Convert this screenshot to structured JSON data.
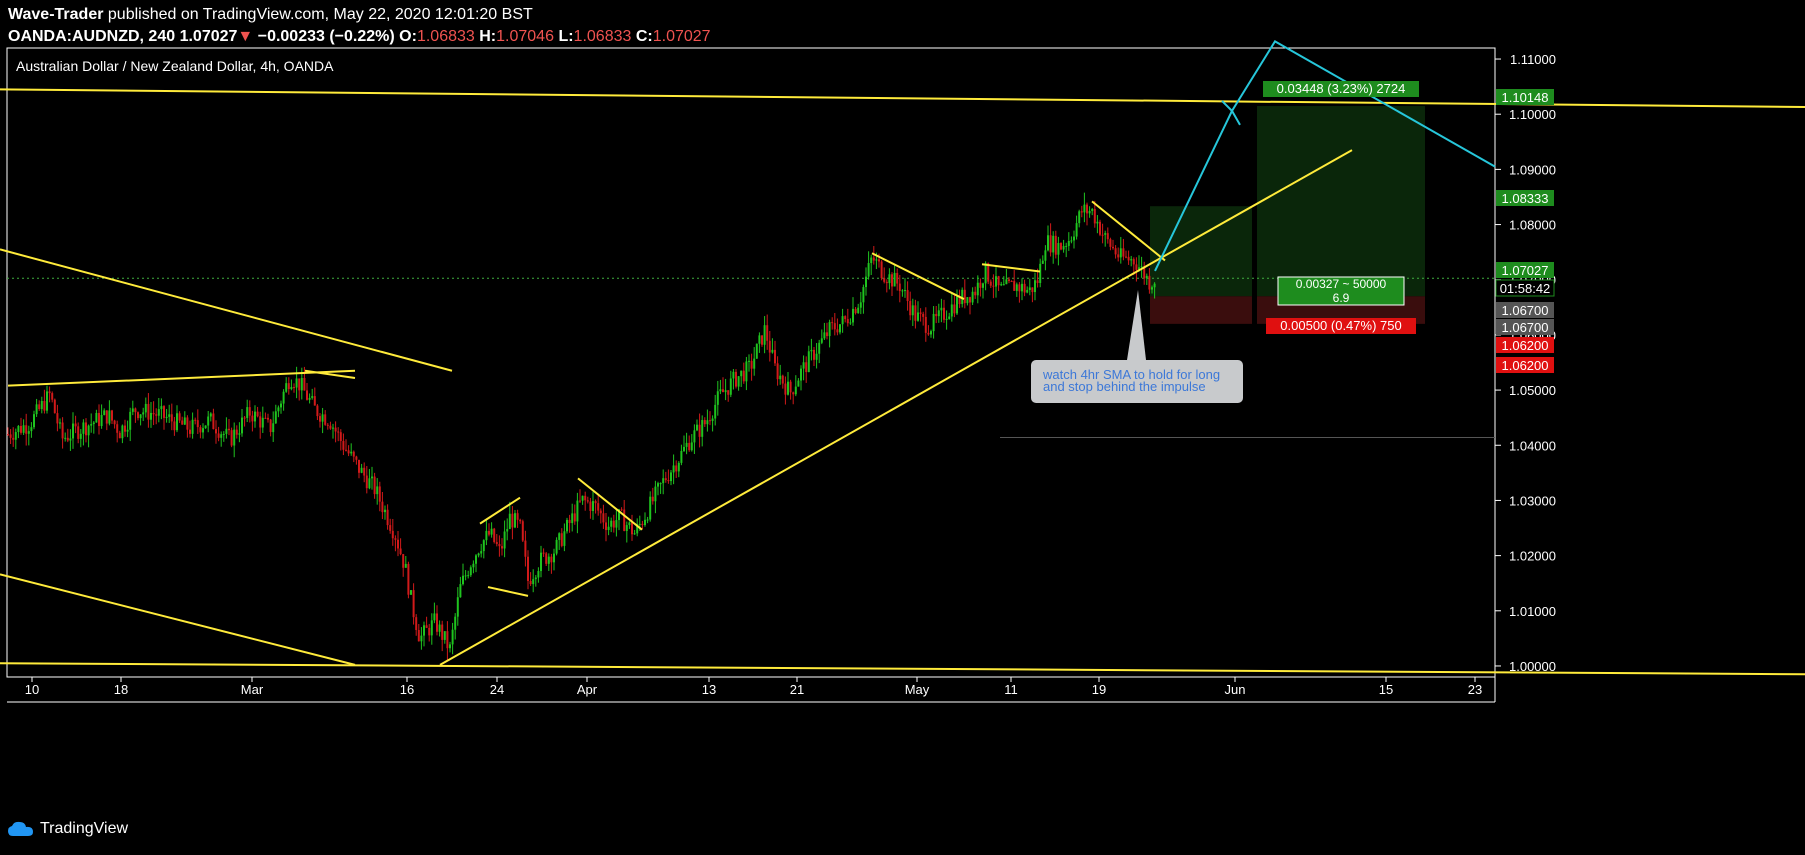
{
  "header": {
    "author": "Wave-Trader",
    "published": " published on TradingView.com, May 22, 2020 12:01:20 BST",
    "symbol": "OANDA:AUDNZD, 240",
    "last": "1.07027",
    "arrow": "▼",
    "change": "−0.00233 (−0.22%)",
    "o_label": "O:",
    "o": "1.06833",
    "h_label": "H:",
    "h": "1.07046",
    "l_label": "L:",
    "l": "1.06833",
    "c_label": "C:",
    "c": "1.07027"
  },
  "footer": {
    "brand": "TradingView"
  },
  "colors": {
    "up": "#26a69a",
    "up_candle": "#1fc41f",
    "down": "#d11a1a",
    "trend": "#ffeb3b",
    "projection": "#26c6da",
    "target_bg": "#0b2a0b",
    "stop_bg": "#3a0d0d"
  },
  "chart_data": {
    "type": "candlestick",
    "title": "Australian Dollar / New Zealand Dollar, 4h, OANDA",
    "ylim": [
      0.998,
      1.112
    ],
    "y_ticks": [
      "1.11000",
      "1.10000",
      "1.09000",
      "1.08000",
      "1.07000",
      "1.06000",
      "1.05000",
      "1.04000",
      "1.03000",
      "1.02000",
      "1.01000",
      "1.00000"
    ],
    "x_ticks": [
      "10",
      "18",
      "Mar",
      "16",
      "24",
      "Apr",
      "13",
      "21",
      "May",
      "11",
      "19",
      "Jun",
      "15",
      "23"
    ],
    "current_price": "1.07027",
    "countdown": "01:58:42",
    "price_tags": [
      {
        "text": "1.10148",
        "value": 1.10148,
        "bg": "#1e8c1e"
      },
      {
        "text": "1.08333",
        "value": 1.08333,
        "bg": "#1e8c1e"
      },
      {
        "text": "1.07027",
        "value": 1.07027,
        "bg": "#1e8c1e"
      },
      {
        "text": "1.06700",
        "value": 1.067,
        "bg": "#555"
      },
      {
        "text": "1.06700",
        "value": 1.067,
        "bg": "#555"
      },
      {
        "text": "1.06200",
        "value": 1.062,
        "bg": "#e01010"
      },
      {
        "text": "1.06200",
        "value": 1.062,
        "bg": "#e01010"
      }
    ],
    "positions": [
      {
        "entry": 1.067,
        "target": 1.08333,
        "stop": 1.062
      },
      {
        "entry": 1.067,
        "target": 1.10148,
        "stop": 1.062
      }
    ],
    "position_labels": {
      "target": "0.03448 (3.23%) 2724",
      "risk_reward_line1": "0.00327 ~ 50000",
      "risk_reward_line2": "6.9",
      "stop": "0.00500 (0.47%) 750"
    },
    "annotation": {
      "line1": "watch 4hr SMA to hold for long",
      "line2": "and stop behind the impulse"
    },
    "trend_lines": [
      {
        "x": [
          0,
          1805
        ],
        "y": [
          1.1045,
          1.1013
        ]
      },
      {
        "x": [
          0,
          452
        ],
        "y": [
          1.0755,
          1.0535
        ]
      },
      {
        "x": [
          0,
          355
        ],
        "y": [
          1.0166,
          1.0002
        ]
      },
      {
        "x": [
          0,
          1805
        ],
        "y": [
          1.0005,
          0.9985
        ]
      },
      {
        "x": [
          8,
          355
        ],
        "y": [
          1.0508,
          1.0535
        ]
      },
      {
        "x": [
          305,
          355
        ],
        "y": [
          1.0535,
          1.0522
        ]
      },
      {
        "x": [
          440,
          1352
        ],
        "y": [
          1.0002,
          1.0935
        ]
      },
      {
        "x": [
          480,
          520
        ],
        "y": [
          1.0258,
          1.0305
        ]
      },
      {
        "x": [
          488,
          528
        ],
        "y": [
          1.0143,
          1.0127
        ]
      },
      {
        "x": [
          578,
          642
        ],
        "y": [
          1.034,
          1.0247
        ]
      },
      {
        "x": [
          872,
          964
        ],
        "y": [
          1.0748,
          1.0665
        ]
      },
      {
        "x": [
          982,
          1040
        ],
        "y": [
          1.0728,
          1.0715
        ]
      },
      {
        "x": [
          1092,
          1165
        ],
        "y": [
          1.0842,
          1.0735
        ]
      },
      {
        "x": [
          1000,
          1495
        ],
        "y": [
          1.0414,
          1.0414
        ]
      }
    ],
    "projection_path": {
      "x": [
        1155,
        1232,
        1275,
        1495
      ],
      "y": [
        1.0716,
        1.1006,
        1.1132,
        1.0905
      ]
    },
    "projection_head": {
      "x": [
        1232,
        1237
      ],
      "y": [
        1.1006,
        1.102
      ]
    },
    "price_path": [
      {
        "x": 8,
        "y": 1.042
      },
      {
        "x": 30,
        "y": 1.044
      },
      {
        "x": 50,
        "y": 1.0492
      },
      {
        "x": 62,
        "y": 1.0412
      },
      {
        "x": 80,
        "y": 1.043
      },
      {
        "x": 108,
        "y": 1.0455
      },
      {
        "x": 120,
        "y": 1.0425
      },
      {
        "x": 135,
        "y": 1.0465
      },
      {
        "x": 160,
        "y": 1.0455
      },
      {
        "x": 190,
        "y": 1.043
      },
      {
        "x": 210,
        "y": 1.0445
      },
      {
        "x": 230,
        "y": 1.041
      },
      {
        "x": 250,
        "y": 1.046
      },
      {
        "x": 270,
        "y": 1.043
      },
      {
        "x": 290,
        "y": 1.0525
      },
      {
        "x": 300,
        "y": 1.051
      },
      {
        "x": 315,
        "y": 1.0465
      },
      {
        "x": 330,
        "y": 1.0445
      },
      {
        "x": 345,
        "y": 1.0395
      },
      {
        "x": 360,
        "y": 1.0355
      },
      {
        "x": 375,
        "y": 1.032
      },
      {
        "x": 385,
        "y": 1.028
      },
      {
        "x": 395,
        "y": 1.024
      },
      {
        "x": 405,
        "y": 1.018
      },
      {
        "x": 412,
        "y": 1.011
      },
      {
        "x": 420,
        "y": 1.005
      },
      {
        "x": 435,
        "y": 1.008
      },
      {
        "x": 450,
        "y": 1.003
      },
      {
        "x": 460,
        "y": 1.014
      },
      {
        "x": 470,
        "y": 1.0185
      },
      {
        "x": 480,
        "y": 1.022
      },
      {
        "x": 490,
        "y": 1.024
      },
      {
        "x": 500,
        "y": 1.0205
      },
      {
        "x": 510,
        "y": 1.027
      },
      {
        "x": 520,
        "y": 1.025
      },
      {
        "x": 528,
        "y": 1.0155
      },
      {
        "x": 540,
        "y": 1.019
      },
      {
        "x": 555,
        "y": 1.021
      },
      {
        "x": 570,
        "y": 1.026
      },
      {
        "x": 582,
        "y": 1.03
      },
      {
        "x": 595,
        "y": 1.029
      },
      {
        "x": 608,
        "y": 1.0255
      },
      {
        "x": 620,
        "y": 1.027
      },
      {
        "x": 635,
        "y": 1.024
      },
      {
        "x": 650,
        "y": 1.029
      },
      {
        "x": 665,
        "y": 1.034
      },
      {
        "x": 680,
        "y": 1.038
      },
      {
        "x": 690,
        "y": 1.041
      },
      {
        "x": 705,
        "y": 1.044
      },
      {
        "x": 720,
        "y": 1.049
      },
      {
        "x": 735,
        "y": 1.052
      },
      {
        "x": 750,
        "y": 1.054
      },
      {
        "x": 765,
        "y": 1.061
      },
      {
        "x": 775,
        "y": 1.054
      },
      {
        "x": 790,
        "y": 1.0495
      },
      {
        "x": 800,
        "y": 1.053
      },
      {
        "x": 815,
        "y": 1.057
      },
      {
        "x": 830,
        "y": 1.061
      },
      {
        "x": 845,
        "y": 1.0625
      },
      {
        "x": 860,
        "y": 1.0665
      },
      {
        "x": 872,
        "y": 1.074
      },
      {
        "x": 885,
        "y": 1.071
      },
      {
        "x": 900,
        "y": 1.069
      },
      {
        "x": 915,
        "y": 1.0635
      },
      {
        "x": 930,
        "y": 1.0615
      },
      {
        "x": 945,
        "y": 1.064
      },
      {
        "x": 960,
        "y": 1.0665
      },
      {
        "x": 975,
        "y": 1.068
      },
      {
        "x": 985,
        "y": 1.0715
      },
      {
        "x": 1000,
        "y": 1.068
      },
      {
        "x": 1015,
        "y": 1.069
      },
      {
        "x": 1030,
        "y": 1.068
      },
      {
        "x": 1038,
        "y": 1.07
      },
      {
        "x": 1045,
        "y": 1.077
      },
      {
        "x": 1060,
        "y": 1.076
      },
      {
        "x": 1070,
        "y": 1.0775
      },
      {
        "x": 1082,
        "y": 1.0825
      },
      {
        "x": 1092,
        "y": 1.0825
      },
      {
        "x": 1105,
        "y": 1.0775
      },
      {
        "x": 1120,
        "y": 1.074
      },
      {
        "x": 1135,
        "y": 1.0735
      },
      {
        "x": 1150,
        "y": 1.0695
      },
      {
        "x": 1155,
        "y": 1.0703
      }
    ]
  }
}
